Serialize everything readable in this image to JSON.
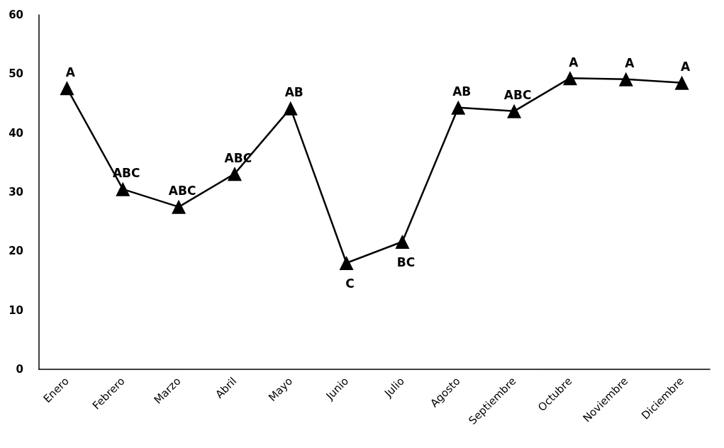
{
  "chart_data": {
    "type": "line",
    "categories": [
      "Enero",
      "Febrero",
      "Marzo",
      "Abril",
      "Mayo",
      "Junio",
      "Julio",
      "Agosto",
      "Septiembre",
      "Octubre",
      "Noviembre",
      "Diciembre"
    ],
    "series": [
      {
        "color": "#000000",
        "values": [
          47.6,
          30.5,
          27.5,
          33.1,
          44.2,
          18.0,
          21.6,
          44.3,
          43.7,
          49.3,
          49.1,
          48.5
        ]
      }
    ],
    "ylim": [
      0,
      60
    ],
    "yticks": [
      0,
      10,
      20,
      30,
      40,
      50,
      60
    ],
    "grid": false,
    "marker": "triangle",
    "line_style": "solid",
    "annotations": [
      {
        "text": "A",
        "x": "Enero",
        "y": 47.6
      },
      {
        "text": "ABC",
        "x": "Febrero",
        "y": 30.5
      },
      {
        "text": "ABC",
        "x": "Marzo",
        "y": 27.5
      },
      {
        "text": "ABC",
        "x": "Abril",
        "y": 33.1
      },
      {
        "text": "AB",
        "x": "Mayo",
        "y": 44.2
      },
      {
        "text": "C",
        "x": "Junio",
        "y": 18.0
      },
      {
        "text": "BC",
        "x": "Julio",
        "y": 21.6
      },
      {
        "text": "AB",
        "x": "Agosto",
        "y": 44.3
      },
      {
        "text": "ABC",
        "x": "Septiembre",
        "y": 43.7
      },
      {
        "text": "A",
        "x": "Octubre",
        "y": 49.3
      },
      {
        "text": "A",
        "x": "Noviembre",
        "y": 49.1
      },
      {
        "text": "A",
        "x": "Diciembre",
        "y": 48.5
      }
    ]
  }
}
